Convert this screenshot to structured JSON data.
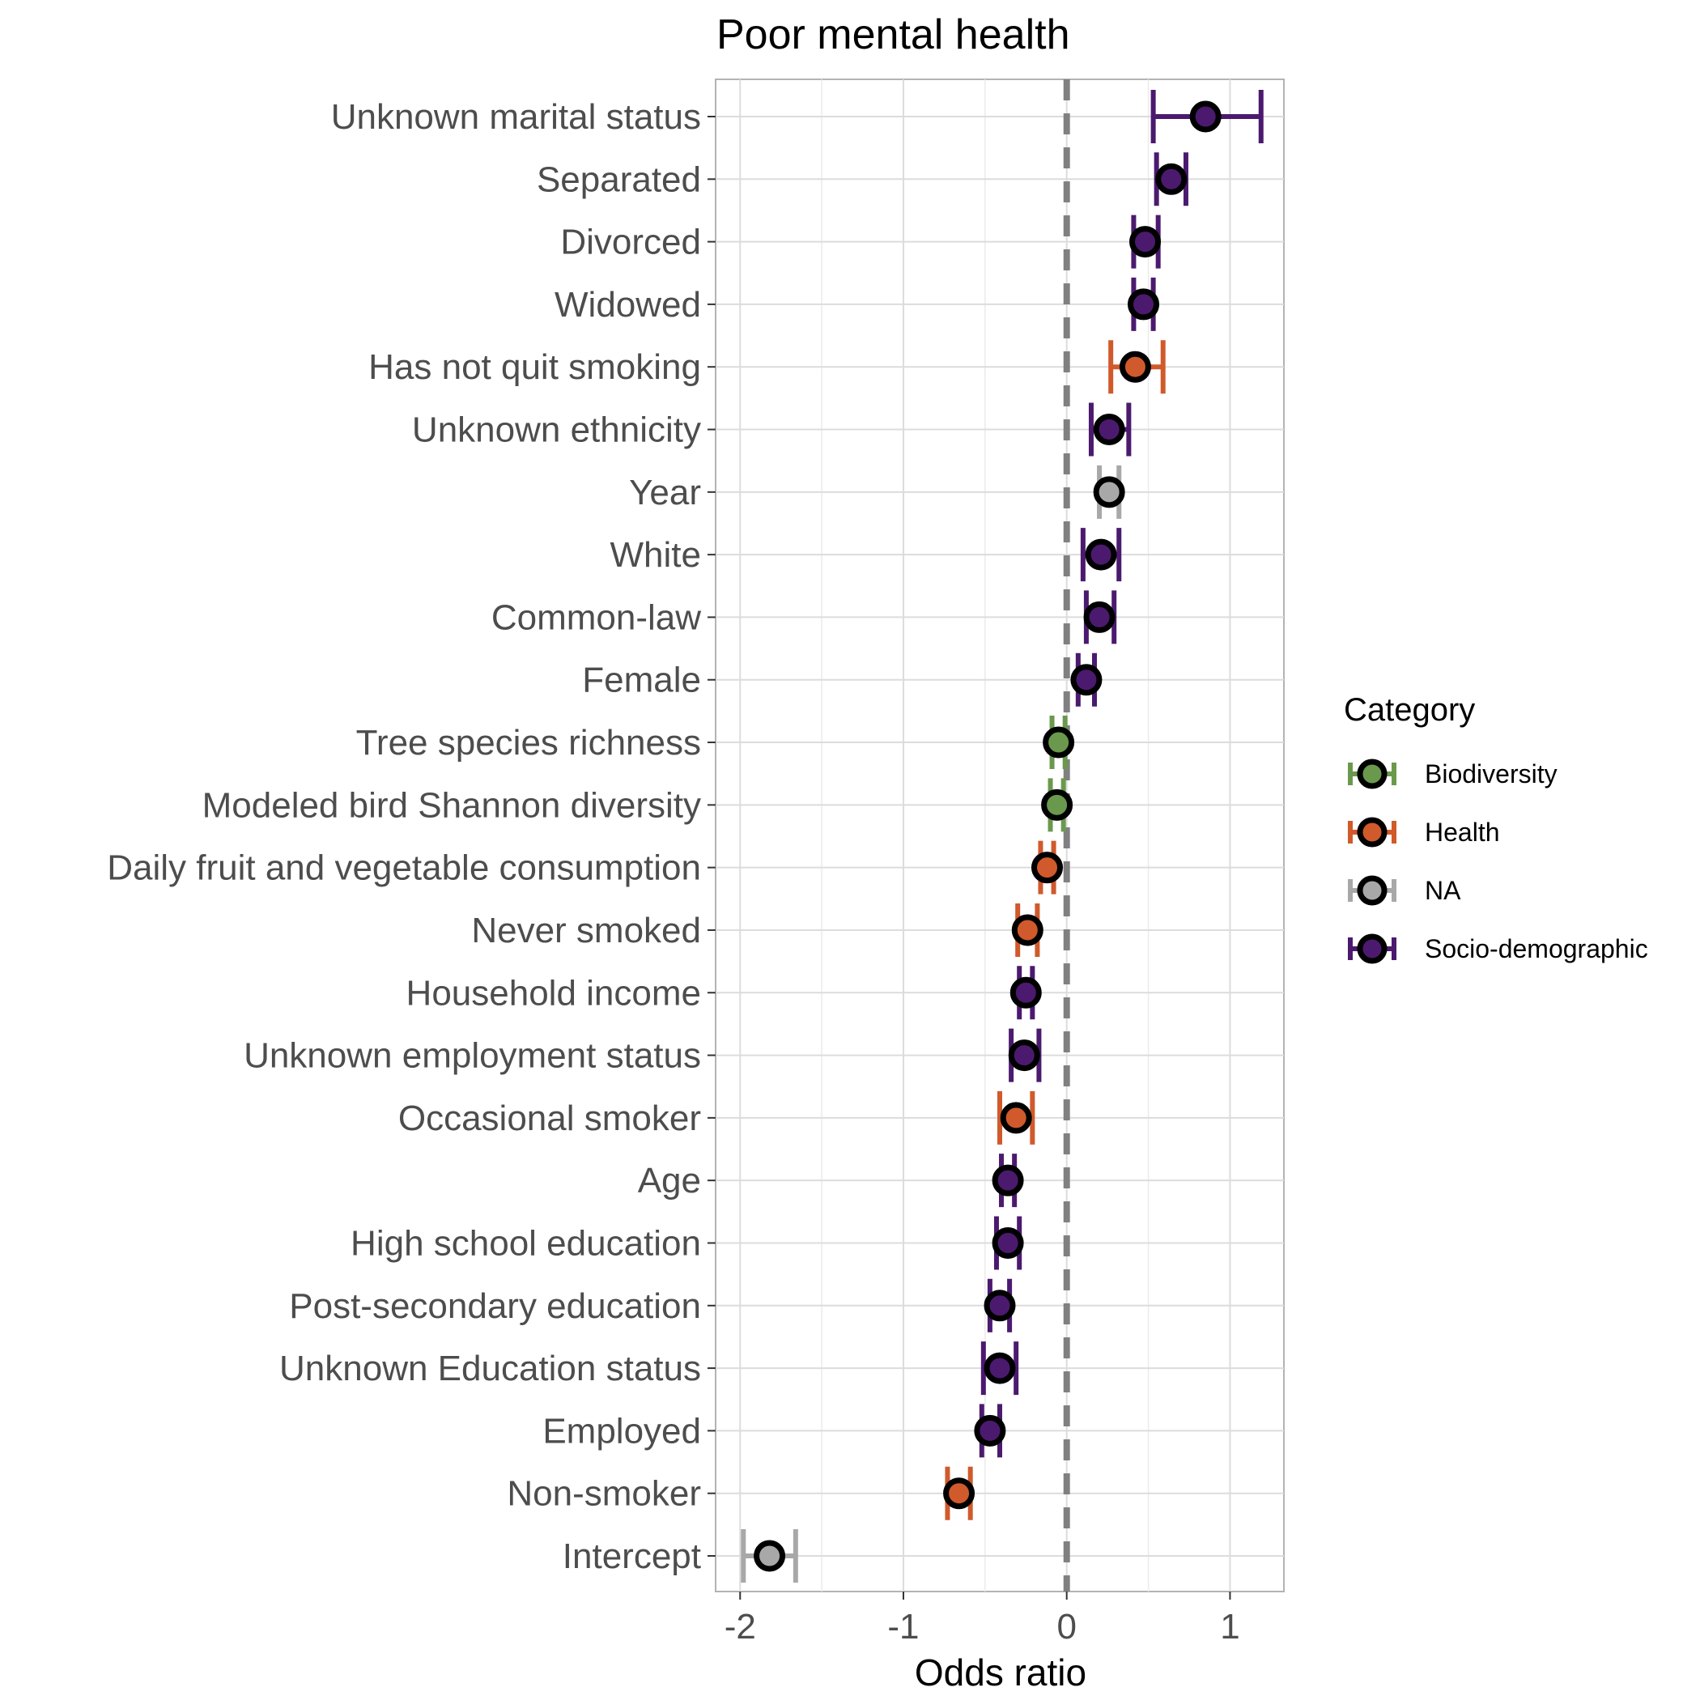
{
  "chart_data": {
    "type": "scatter",
    "title": "Poor mental health",
    "xlabel": "Odds ratio",
    "ylabel": "",
    "xlim": [
      -2.15,
      1.33
    ],
    "x_ticks": [
      -2,
      -1,
      0,
      1
    ],
    "x_tick_labels": [
      "-2",
      "-1",
      "0",
      "1"
    ],
    "reference_line_x": 0,
    "grid": true,
    "legend": {
      "title": "Category",
      "placement": "right",
      "entries": [
        "Biodiversity",
        "Health",
        "NA",
        "Socio-demographic"
      ]
    },
    "colors": {
      "Biodiversity": "#6a994e",
      "Health": "#d05a2b",
      "NA": "#a8a8a8",
      "Socio-demographic": "#4b1a6e"
    },
    "points": [
      {
        "label": "Unknown marital status",
        "category": "Socio-demographic",
        "estimate": 0.85,
        "low": 0.53,
        "high": 1.19
      },
      {
        "label": "Separated",
        "category": "Socio-demographic",
        "estimate": 0.64,
        "low": 0.55,
        "high": 0.73
      },
      {
        "label": "Divorced",
        "category": "Socio-demographic",
        "estimate": 0.48,
        "low": 0.41,
        "high": 0.56
      },
      {
        "label": "Widowed",
        "category": "Socio-demographic",
        "estimate": 0.47,
        "low": 0.41,
        "high": 0.53
      },
      {
        "label": "Has not quit smoking",
        "category": "Health",
        "estimate": 0.42,
        "low": 0.27,
        "high": 0.59
      },
      {
        "label": "Unknown ethnicity",
        "category": "Socio-demographic",
        "estimate": 0.26,
        "low": 0.15,
        "high": 0.38
      },
      {
        "label": "Year",
        "category": "NA",
        "estimate": 0.26,
        "low": 0.2,
        "high": 0.32
      },
      {
        "label": "White",
        "category": "Socio-demographic",
        "estimate": 0.21,
        "low": 0.1,
        "high": 0.32
      },
      {
        "label": "Common-law",
        "category": "Socio-demographic",
        "estimate": 0.2,
        "low": 0.12,
        "high": 0.29
      },
      {
        "label": "Female",
        "category": "Socio-demographic",
        "estimate": 0.12,
        "low": 0.07,
        "high": 0.17
      },
      {
        "label": "Tree species richness",
        "category": "Biodiversity",
        "estimate": -0.05,
        "low": -0.09,
        "high": -0.01
      },
      {
        "label": "Modeled bird Shannon diversity",
        "category": "Biodiversity",
        "estimate": -0.06,
        "low": -0.1,
        "high": -0.02
      },
      {
        "label": "Daily fruit and vegetable consumption",
        "category": "Health",
        "estimate": -0.12,
        "low": -0.16,
        "high": -0.08
      },
      {
        "label": "Never smoked",
        "category": "Health",
        "estimate": -0.24,
        "low": -0.3,
        "high": -0.18
      },
      {
        "label": "Household income",
        "category": "Socio-demographic",
        "estimate": -0.25,
        "low": -0.29,
        "high": -0.21
      },
      {
        "label": "Unknown employment status",
        "category": "Socio-demographic",
        "estimate": -0.26,
        "low": -0.34,
        "high": -0.17
      },
      {
        "label": "Occasional smoker",
        "category": "Health",
        "estimate": -0.31,
        "low": -0.41,
        "high": -0.21
      },
      {
        "label": "Age",
        "category": "Socio-demographic",
        "estimate": -0.36,
        "low": -0.4,
        "high": -0.32
      },
      {
        "label": "High school education",
        "category": "Socio-demographic",
        "estimate": -0.36,
        "low": -0.43,
        "high": -0.29
      },
      {
        "label": "Post-secondary education",
        "category": "Socio-demographic",
        "estimate": -0.41,
        "low": -0.47,
        "high": -0.35
      },
      {
        "label": "Unknown Education status",
        "category": "Socio-demographic",
        "estimate": -0.41,
        "low": -0.51,
        "high": -0.31
      },
      {
        "label": "Employed",
        "category": "Socio-demographic",
        "estimate": -0.47,
        "low": -0.52,
        "high": -0.41
      },
      {
        "label": "Non-smoker",
        "category": "Health",
        "estimate": -0.66,
        "low": -0.73,
        "high": -0.59
      },
      {
        "label": "Intercept",
        "category": "NA",
        "estimate": -1.82,
        "low": -1.98,
        "high": -1.66
      }
    ]
  }
}
